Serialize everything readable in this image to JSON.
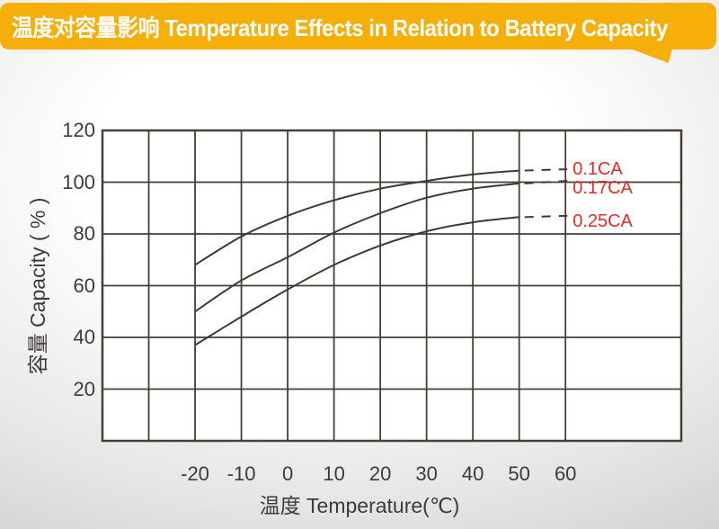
{
  "header": {
    "title": "温度对容量影响 Temperature Effects in Relation to Battery Capacity",
    "bg_color": "#F6AE08",
    "text_color": "#FFFFFF"
  },
  "chart_data": {
    "type": "line",
    "title": "温度对容量影响 Temperature Effects in Relation to Battery Capacity",
    "xlabel": "温度 Temperature(℃)",
    "ylabel": "容量 Capacity ( % )",
    "x_ticks": [
      -20,
      -10,
      0,
      10,
      20,
      30,
      40,
      50,
      60
    ],
    "y_ticks": [
      120,
      100,
      80,
      60,
      40,
      20
    ],
    "xlim": [
      -40,
      85
    ],
    "ylim": [
      0,
      120
    ],
    "grid": true,
    "legend_position": "right-of-curves",
    "x": [
      -20,
      -10,
      0,
      10,
      20,
      30,
      40,
      50
    ],
    "series": [
      {
        "name": "0.1CA",
        "values": [
          68,
          79,
          87,
          93,
          97.5,
          100.5,
          103,
          104.5
        ],
        "dash_end_x": 60,
        "dash_end_y": 105
      },
      {
        "name": "0.17CA",
        "values": [
          50,
          62,
          71,
          80.5,
          88,
          94,
          97.5,
          99.5
        ],
        "dash_end_x": 60,
        "dash_end_y": 100.5
      },
      {
        "name": "0.25CA",
        "values": [
          37,
          48,
          58.5,
          68,
          75.5,
          81,
          84.5,
          86.5
        ],
        "dash_end_x": 60,
        "dash_end_y": 87
      }
    ],
    "colors": {
      "curve": "#3F3835",
      "grid": "#453E39",
      "plot_background": "#FFFFFF",
      "tick_text": "#3E3A39",
      "series_label": "#E62A24"
    }
  }
}
